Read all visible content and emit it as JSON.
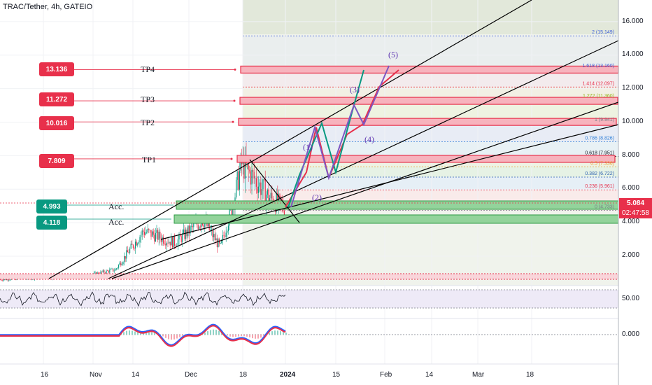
{
  "header": {
    "title": "TRAC/Tether, 4h, GATEIO"
  },
  "targets": [
    {
      "price": "13.136",
      "label": "TP4",
      "color": "#e8304b"
    },
    {
      "price": "11.272",
      "label": "TP3",
      "color": "#e8304b"
    },
    {
      "price": "10.016",
      "label": "TP2",
      "color": "#e8304b"
    },
    {
      "price": "7.809",
      "label": "TP1",
      "color": "#e8304b"
    }
  ],
  "accumulation": [
    {
      "price": "4.993",
      "label": "Acc.",
      "color": "#089981"
    },
    {
      "price": "4.118",
      "label": "Acc.",
      "color": "#089981"
    }
  ],
  "fib_levels": [
    {
      "label": "2 (15.149)",
      "value": 15.149,
      "color": "#3f5fd8"
    },
    {
      "label": "1.618 (13.160)",
      "value": 13.16,
      "color": "#3f5fd8"
    },
    {
      "label": "1.414 (12.097)",
      "value": 12.097,
      "color": "#e8304b"
    },
    {
      "label": "1.272 (11.360)",
      "value": 11.36,
      "color": "#9ab521"
    },
    {
      "label": "1 (9.941)",
      "value": 9.941,
      "color": "#787b86"
    },
    {
      "label": "0.786 (8.826)",
      "value": 8.826,
      "color": "#2f7fd8"
    },
    {
      "label": "0.618 (7.951)",
      "value": 7.951,
      "color": "#131722"
    },
    {
      "label": "0.5 (7.336)",
      "value": 7.336,
      "color": "#e89a2f"
    },
    {
      "label": "0.382 (6.722)",
      "value": 6.722,
      "color": "#2a5fb0"
    },
    {
      "label": "0.236 (5.961)",
      "value": 5.961,
      "color": "#e8304b"
    },
    {
      "label": "0 (4.733)",
      "value": 4.733,
      "color": "#787b86"
    }
  ],
  "wave_labels": [
    "(1)",
    "(2)",
    "(3)",
    "(4)",
    "(5)"
  ],
  "price_axis": {
    "ticks": [
      "16.000",
      "14.000",
      "12.000",
      "10.000",
      "8.000",
      "6.000",
      "4.000",
      "2.000"
    ]
  },
  "current_price": {
    "value": "5.084",
    "countdown": "02:47:58",
    "color": "#e8304b"
  },
  "rsi_axis": {
    "ticks": [
      "50.00"
    ]
  },
  "macd_axis": {
    "ticks": [
      "0.000"
    ]
  },
  "time_axis": {
    "ticks": [
      "16",
      "Nov",
      "14",
      "Dec",
      "18",
      "2024",
      "15",
      "Feb",
      "14",
      "Mar",
      "18"
    ]
  },
  "chart_data": {
    "type": "line",
    "title": "TRAC/Tether, 4h, GATEIO",
    "ylim": [
      0,
      17.5
    ],
    "y_scale": "linear",
    "current_price": 5.084,
    "projected_wave_points": [
      4.73,
      9.94,
      4.73,
      11.36,
      9.94,
      13.16
    ],
    "target_levels": [
      13.136,
      11.272,
      10.016,
      7.809
    ],
    "accumulation_levels": [
      4.993,
      4.118
    ]
  }
}
